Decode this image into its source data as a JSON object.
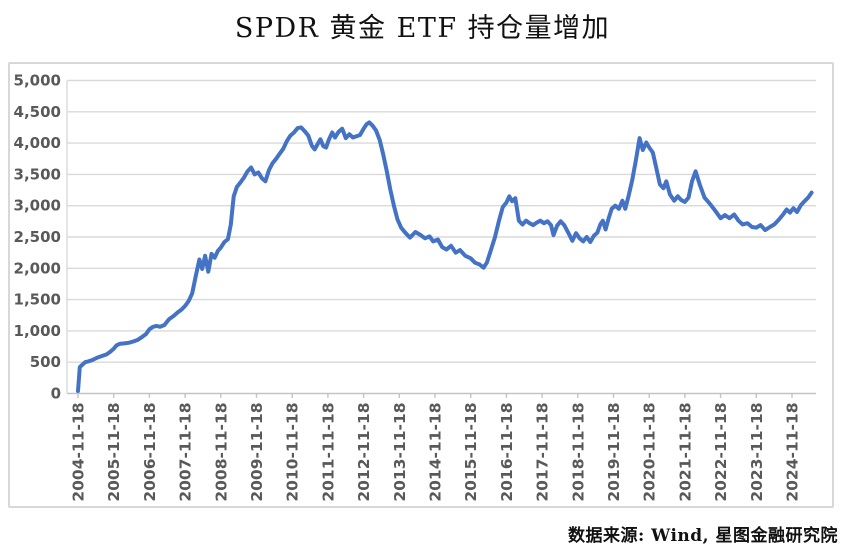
{
  "title": "SPDR 黄金 ETF 持仓量增加",
  "source_note": "数据来源: Wind, 星图金融研究院",
  "colors": {
    "line": "#4472C4",
    "grid": "#dadada",
    "axis": "#c4c4c4",
    "axis_label": "#595959",
    "frame_border": "#d8d8d8"
  },
  "chart_data": {
    "type": "line",
    "title": "SPDR 黄金 ETF 持仓量增加",
    "xlabel": "",
    "ylabel": "",
    "grid": true,
    "legend": false,
    "y_axis": {
      "min": 0,
      "max": 5000,
      "tick_interval": 500,
      "tick_values": [
        0,
        500,
        1000,
        1500,
        2000,
        2500,
        3000,
        3500,
        4000,
        4500,
        5000
      ],
      "tick_labels": [
        "0",
        "500",
        "1,000",
        "1,500",
        "2,000",
        "2,500",
        "3,000",
        "3,500",
        "4,000",
        "4,500",
        "5,000"
      ]
    },
    "x_axis": {
      "label_rotation_deg": -90,
      "labels": [
        "2004-11-18",
        "2005-11-18",
        "2006-11-18",
        "2007-11-18",
        "2008-11-18",
        "2009-11-18",
        "2010-11-18",
        "2011-11-18",
        "2012-11-18",
        "2013-11-18",
        "2014-11-18",
        "2015-11-18",
        "2016-11-18",
        "2017-11-18",
        "2018-11-18",
        "2019-11-18",
        "2020-11-18",
        "2021-11-18",
        "2022-11-18",
        "2023-11-18",
        "2024-11-18"
      ]
    },
    "series": [
      {
        "name": "SPDR黄金ETF持仓量",
        "color": "#4472C4",
        "x_unit": "years since 2004-11-18",
        "points": [
          [
            0,
            40
          ],
          [
            0.05,
            420
          ],
          [
            0.12,
            460
          ],
          [
            0.2,
            500
          ],
          [
            0.3,
            515
          ],
          [
            0.42,
            540
          ],
          [
            0.55,
            575
          ],
          [
            0.68,
            600
          ],
          [
            0.8,
            625
          ],
          [
            0.9,
            665
          ],
          [
            1.0,
            715
          ],
          [
            1.08,
            770
          ],
          [
            1.18,
            795
          ],
          [
            1.3,
            800
          ],
          [
            1.42,
            810
          ],
          [
            1.55,
            830
          ],
          [
            1.68,
            860
          ],
          [
            1.8,
            905
          ],
          [
            1.9,
            945
          ],
          [
            2.0,
            1025
          ],
          [
            2.1,
            1065
          ],
          [
            2.2,
            1080
          ],
          [
            2.3,
            1065
          ],
          [
            2.42,
            1095
          ],
          [
            2.55,
            1185
          ],
          [
            2.68,
            1240
          ],
          [
            2.8,
            1300
          ],
          [
            2.9,
            1340
          ],
          [
            3.0,
            1400
          ],
          [
            3.1,
            1480
          ],
          [
            3.2,
            1600
          ],
          [
            3.3,
            1880
          ],
          [
            3.4,
            2140
          ],
          [
            3.48,
            1990
          ],
          [
            3.56,
            2200
          ],
          [
            3.65,
            1945
          ],
          [
            3.74,
            2230
          ],
          [
            3.83,
            2170
          ],
          [
            3.92,
            2280
          ],
          [
            4.0,
            2330
          ],
          [
            4.1,
            2420
          ],
          [
            4.2,
            2465
          ],
          [
            4.28,
            2700
          ],
          [
            4.36,
            3150
          ],
          [
            4.45,
            3300
          ],
          [
            4.55,
            3370
          ],
          [
            4.65,
            3450
          ],
          [
            4.75,
            3550
          ],
          [
            4.85,
            3610
          ],
          [
            4.95,
            3500
          ],
          [
            5.05,
            3530
          ],
          [
            5.15,
            3440
          ],
          [
            5.25,
            3390
          ],
          [
            5.35,
            3570
          ],
          [
            5.45,
            3680
          ],
          [
            5.55,
            3750
          ],
          [
            5.65,
            3830
          ],
          [
            5.75,
            3910
          ],
          [
            5.85,
            4030
          ],
          [
            5.95,
            4120
          ],
          [
            6.05,
            4170
          ],
          [
            6.15,
            4240
          ],
          [
            6.25,
            4250
          ],
          [
            6.35,
            4190
          ],
          [
            6.45,
            4120
          ],
          [
            6.55,
            3960
          ],
          [
            6.63,
            3900
          ],
          [
            6.71,
            3980
          ],
          [
            6.79,
            4060
          ],
          [
            6.87,
            3950
          ],
          [
            6.95,
            3930
          ],
          [
            7.03,
            4060
          ],
          [
            7.12,
            4170
          ],
          [
            7.2,
            4090
          ],
          [
            7.3,
            4180
          ],
          [
            7.4,
            4230
          ],
          [
            7.5,
            4080
          ],
          [
            7.6,
            4140
          ],
          [
            7.7,
            4090
          ],
          [
            7.8,
            4110
          ],
          [
            7.9,
            4130
          ],
          [
            8.0,
            4230
          ],
          [
            8.08,
            4300
          ],
          [
            8.16,
            4330
          ],
          [
            8.25,
            4280
          ],
          [
            8.35,
            4200
          ],
          [
            8.45,
            4050
          ],
          [
            8.55,
            3820
          ],
          [
            8.65,
            3550
          ],
          [
            8.75,
            3250
          ],
          [
            8.85,
            3000
          ],
          [
            8.95,
            2780
          ],
          [
            9.05,
            2650
          ],
          [
            9.18,
            2560
          ],
          [
            9.3,
            2490
          ],
          [
            9.45,
            2580
          ],
          [
            9.6,
            2530
          ],
          [
            9.72,
            2480
          ],
          [
            9.85,
            2510
          ],
          [
            9.95,
            2430
          ],
          [
            10.08,
            2460
          ],
          [
            10.2,
            2340
          ],
          [
            10.32,
            2300
          ],
          [
            10.45,
            2360
          ],
          [
            10.58,
            2250
          ],
          [
            10.7,
            2290
          ],
          [
            10.85,
            2200
          ],
          [
            11.0,
            2160
          ],
          [
            11.12,
            2090
          ],
          [
            11.25,
            2060
          ],
          [
            11.36,
            2010
          ],
          [
            11.45,
            2090
          ],
          [
            11.55,
            2260
          ],
          [
            11.68,
            2500
          ],
          [
            11.8,
            2780
          ],
          [
            11.9,
            2980
          ],
          [
            12.0,
            3050
          ],
          [
            12.08,
            3150
          ],
          [
            12.16,
            3070
          ],
          [
            12.25,
            3120
          ],
          [
            12.35,
            2760
          ],
          [
            12.45,
            2700
          ],
          [
            12.55,
            2760
          ],
          [
            12.65,
            2720
          ],
          [
            12.75,
            2690
          ],
          [
            12.85,
            2730
          ],
          [
            12.95,
            2760
          ],
          [
            13.05,
            2720
          ],
          [
            13.15,
            2750
          ],
          [
            13.25,
            2690
          ],
          [
            13.32,
            2530
          ],
          [
            13.42,
            2680
          ],
          [
            13.52,
            2750
          ],
          [
            13.62,
            2690
          ],
          [
            13.75,
            2550
          ],
          [
            13.85,
            2440
          ],
          [
            13.95,
            2560
          ],
          [
            14.05,
            2480
          ],
          [
            14.15,
            2430
          ],
          [
            14.25,
            2500
          ],
          [
            14.35,
            2420
          ],
          [
            14.45,
            2520
          ],
          [
            14.55,
            2570
          ],
          [
            14.63,
            2700
          ],
          [
            14.7,
            2760
          ],
          [
            14.78,
            2620
          ],
          [
            14.86,
            2790
          ],
          [
            14.95,
            2950
          ],
          [
            15.05,
            3000
          ],
          [
            15.15,
            2950
          ],
          [
            15.25,
            3080
          ],
          [
            15.33,
            2950
          ],
          [
            15.42,
            3150
          ],
          [
            15.52,
            3400
          ],
          [
            15.62,
            3700
          ],
          [
            15.73,
            4080
          ],
          [
            15.82,
            3890
          ],
          [
            15.92,
            4010
          ],
          [
            16.0,
            3930
          ],
          [
            16.1,
            3850
          ],
          [
            16.2,
            3600
          ],
          [
            16.3,
            3340
          ],
          [
            16.4,
            3280
          ],
          [
            16.48,
            3390
          ],
          [
            16.58,
            3180
          ],
          [
            16.7,
            3080
          ],
          [
            16.8,
            3150
          ],
          [
            16.9,
            3090
          ],
          [
            17.0,
            3060
          ],
          [
            17.1,
            3130
          ],
          [
            17.2,
            3390
          ],
          [
            17.3,
            3550
          ],
          [
            17.42,
            3330
          ],
          [
            17.55,
            3130
          ],
          [
            17.7,
            3030
          ],
          [
            17.85,
            2920
          ],
          [
            18.0,
            2800
          ],
          [
            18.12,
            2850
          ],
          [
            18.25,
            2800
          ],
          [
            18.38,
            2860
          ],
          [
            18.5,
            2760
          ],
          [
            18.62,
            2700
          ],
          [
            18.75,
            2720
          ],
          [
            18.88,
            2660
          ],
          [
            19.0,
            2650
          ],
          [
            19.12,
            2690
          ],
          [
            19.25,
            2610
          ],
          [
            19.38,
            2660
          ],
          [
            19.5,
            2700
          ],
          [
            19.62,
            2770
          ],
          [
            19.75,
            2860
          ],
          [
            19.85,
            2940
          ],
          [
            19.94,
            2890
          ],
          [
            20.04,
            2960
          ],
          [
            20.14,
            2900
          ],
          [
            20.25,
            3010
          ],
          [
            20.35,
            3070
          ],
          [
            20.45,
            3130
          ],
          [
            20.55,
            3210
          ]
        ]
      }
    ]
  }
}
